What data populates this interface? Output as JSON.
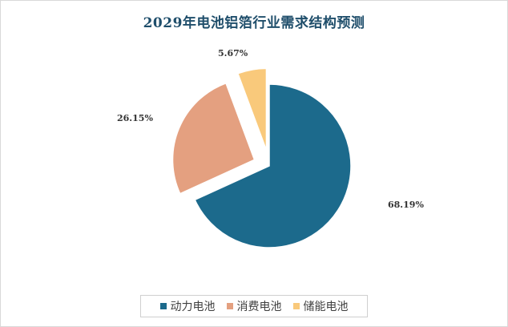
{
  "chart_data": {
    "type": "pie",
    "title": "2029年电池铝箔行业需求结构预测",
    "slices": [
      {
        "name": "动力电池",
        "value": 68.19,
        "label": "68.19%",
        "color": "#1c6a8c"
      },
      {
        "name": "消费电池",
        "value": 26.15,
        "label": "26.15%",
        "color": "#e4a080"
      },
      {
        "name": "储能电池",
        "value": 5.67,
        "label": "5.67%",
        "color": "#f9c97b"
      }
    ],
    "legend": "bottom"
  }
}
